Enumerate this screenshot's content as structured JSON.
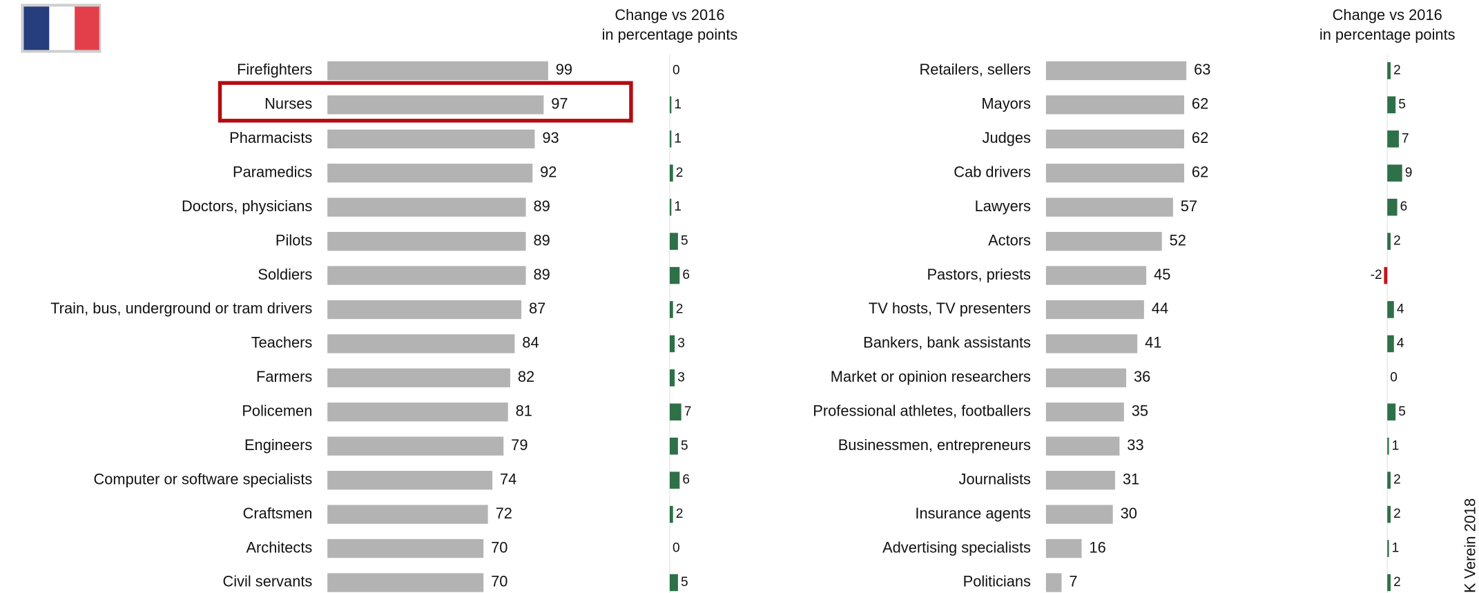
{
  "chart_data": [
    {
      "type": "bar",
      "categories": [
        "Firefighters",
        "Nurses",
        "Pharmacists",
        "Paramedics",
        "Doctors, physicians",
        "Pilots",
        "Soldiers",
        "Train, bus, underground or tram drivers",
        "Teachers",
        "Farmers",
        "Policemen",
        "Engineers",
        "Computer or software specialists",
        "Craftsmen",
        "Architects",
        "Civil servants"
      ],
      "values": [
        99,
        97,
        93,
        92,
        89,
        89,
        89,
        87,
        84,
        82,
        81,
        79,
        74,
        72,
        70,
        70
      ],
      "color": "#b3b3b3",
      "change_title": [
        "Change vs 2016",
        "in percentage points"
      ],
      "change_values": [
        0,
        1,
        1,
        2,
        1,
        5,
        6,
        2,
        3,
        3,
        7,
        5,
        6,
        2,
        0,
        5
      ],
      "positive_color": "#2e7048",
      "negative_color": "#c0141c"
    },
    {
      "type": "bar",
      "categories": [
        "Retailers, sellers",
        "Mayors",
        "Judges",
        "Cab drivers",
        "Lawyers",
        "Actors",
        "Pastors, priests",
        "TV hosts, TV presenters",
        "Bankers, bank assistants",
        "Market or opinion researchers",
        "Professional athletes, footballers",
        "Businessmen, entrepreneurs",
        "Journalists",
        "Insurance agents",
        "Advertising specialists",
        "Politicians"
      ],
      "values": [
        63,
        62,
        62,
        62,
        57,
        52,
        45,
        44,
        41,
        36,
        35,
        33,
        31,
        30,
        16,
        7
      ],
      "color": "#b3b3b3",
      "change_title": [
        "Change vs 2016",
        "in percentage points"
      ],
      "change_values": [
        2,
        5,
        7,
        9,
        6,
        2,
        -2,
        4,
        4,
        0,
        5,
        1,
        2,
        2,
        1,
        2
      ],
      "positive_color": "#2e7048",
      "negative_color": "#c0141c",
      "source": "K Verein 2018"
    }
  ]
}
